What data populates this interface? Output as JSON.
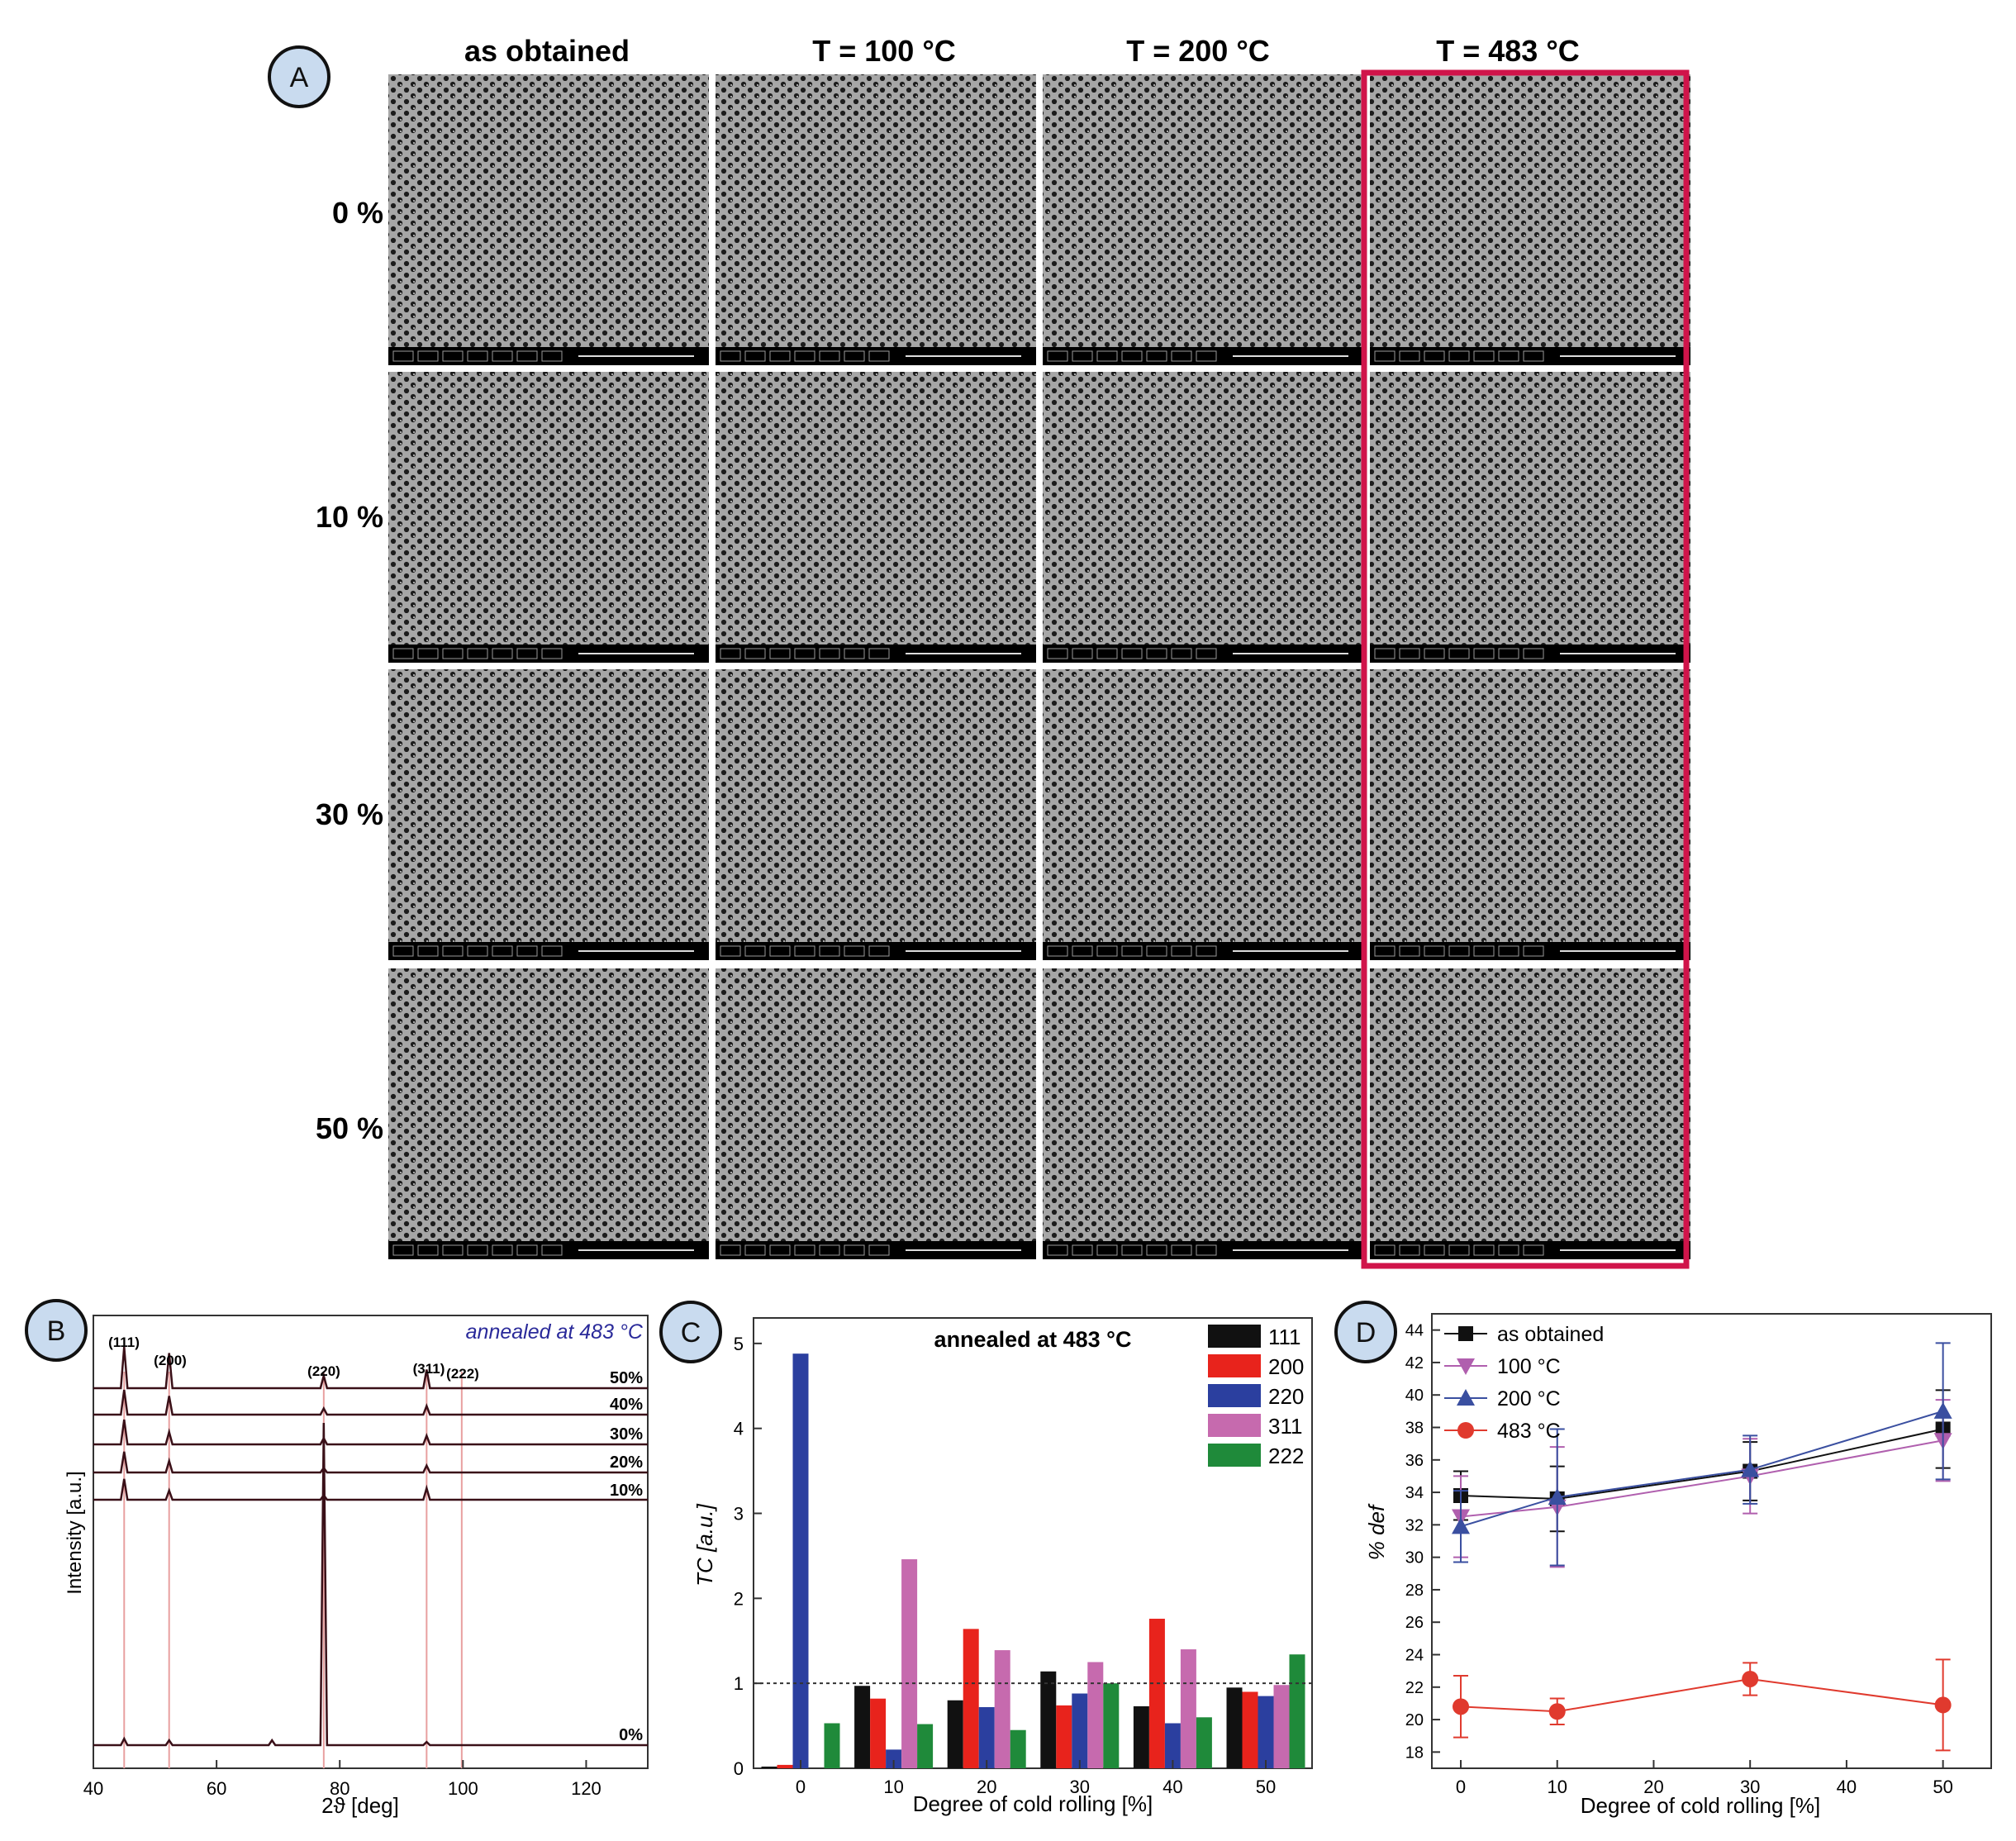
{
  "panel_a": {
    "badge": "A",
    "col_headers": [
      "as obtained",
      "T = 100 °C",
      "T = 200 °C",
      "T = 483 °C"
    ],
    "row_headers": [
      "0 %",
      "10 %",
      "30 %",
      "50 %"
    ],
    "highlight_color": "#d0144a",
    "highlighted_column": "T = 483 °C"
  },
  "chart_data": [
    {
      "panel": "B",
      "type": "line",
      "badge": "B",
      "annotation": "annealed at 483 °C",
      "xlabel": "2ϑ [deg]",
      "ylabel": "Intensity [a.u.]",
      "xlim": [
        40,
        130
      ],
      "x_ticks": [
        "40",
        "60",
        "80",
        "100",
        "120"
      ],
      "peak_labels": [
        {
          "label": "(111)",
          "x": 45
        },
        {
          "label": "(200)",
          "x": 52.3
        },
        {
          "label": "(220)",
          "x": 77.4
        },
        {
          "label": "(311)",
          "x": 94.1
        },
        {
          "label": "(222)",
          "x": 99.8
        }
      ],
      "series": [
        {
          "name": "50%",
          "peaks": [
            {
              "x": 45,
              "h": 1.0
            },
            {
              "x": 52.3,
              "h": 0.85
            },
            {
              "x": 77.4,
              "h": 0.3
            },
            {
              "x": 94.1,
              "h": 0.45
            }
          ]
        },
        {
          "name": "40%",
          "peaks": [
            {
              "x": 45,
              "h": 1.0
            },
            {
              "x": 52.3,
              "h": 0.75
            },
            {
              "x": 77.4,
              "h": 0.25
            },
            {
              "x": 94.1,
              "h": 0.35
            }
          ]
        },
        {
          "name": "30%",
          "peaks": [
            {
              "x": 45,
              "h": 1.0
            },
            {
              "x": 52.3,
              "h": 0.5
            },
            {
              "x": 77.4,
              "h": 0.25
            },
            {
              "x": 94.1,
              "h": 0.35
            }
          ]
        },
        {
          "name": "20%",
          "peaks": [
            {
              "x": 45,
              "h": 0.9
            },
            {
              "x": 52.3,
              "h": 0.5
            },
            {
              "x": 77.4,
              "h": 0.2
            },
            {
              "x": 94.1,
              "h": 0.3
            }
          ]
        },
        {
          "name": "10%",
          "peaks": [
            {
              "x": 45,
              "h": 0.9
            },
            {
              "x": 52.3,
              "h": 0.4
            },
            {
              "x": 77.4,
              "h": 0.2
            },
            {
              "x": 94.1,
              "h": 0.5
            }
          ]
        },
        {
          "name": "0%",
          "peaks": [
            {
              "x": 45,
              "h": 0.02
            },
            {
              "x": 52.3,
              "h": 0.015
            },
            {
              "x": 69,
              "h": 0.015
            },
            {
              "x": 77.4,
              "h": 1.0
            },
            {
              "x": 94.1,
              "h": 0.01
            }
          ]
        }
      ],
      "reference_lines_color": "#e8a0a0",
      "trace_color": "#3a1018",
      "annotation_color": "#2a2a9a"
    },
    {
      "panel": "C",
      "type": "bar",
      "badge": "C",
      "title": "annealed at 483 °C",
      "xlabel": "Degree of cold rolling [%]",
      "ylabel": "TC [a.u.]",
      "ylim": [
        0,
        5.3
      ],
      "y_ticks": [
        "0",
        "1",
        "2",
        "3",
        "4",
        "5"
      ],
      "reference_line": 1,
      "categories": [
        "0",
        "10",
        "20",
        "30",
        "40",
        "50"
      ],
      "series": [
        {
          "name": "111",
          "color": "#111111",
          "values": [
            0.02,
            0.97,
            0.8,
            1.14,
            0.73,
            0.95
          ]
        },
        {
          "name": "200",
          "color": "#e8231c",
          "values": [
            0.04,
            0.82,
            1.64,
            0.74,
            1.76,
            0.9
          ]
        },
        {
          "name": "220",
          "color": "#2b3f9f",
          "values": [
            4.88,
            0.22,
            0.72,
            0.88,
            0.53,
            0.85
          ]
        },
        {
          "name": "311",
          "color": "#c66aae",
          "values": [
            0.0,
            2.46,
            1.39,
            1.25,
            1.4,
            0.98
          ]
        },
        {
          "name": "222",
          "color": "#1f8a3a",
          "values": [
            0.53,
            0.52,
            0.45,
            1.0,
            0.6,
            1.34
          ]
        }
      ],
      "legend_position": "top-right"
    },
    {
      "panel": "D",
      "type": "line",
      "badge": "D",
      "xlabel": "Degree of cold rolling [%]",
      "ylabel": "% def",
      "xlim": [
        -3,
        55
      ],
      "ylim": [
        17,
        45
      ],
      "x_ticks": [
        0,
        10,
        20,
        30,
        40,
        50
      ],
      "y_ticks": [
        18,
        20,
        22,
        24,
        26,
        28,
        30,
        32,
        34,
        36,
        38,
        40,
        42,
        44
      ],
      "x": [
        0,
        10,
        30,
        50
      ],
      "series": [
        {
          "name": "as obtained",
          "color": "#111111",
          "marker": "square",
          "values": [
            33.8,
            33.6,
            35.3,
            37.9
          ],
          "err": [
            1.5,
            2.0,
            1.8,
            2.4
          ]
        },
        {
          "name": "100 °C",
          "color": "#b05fae",
          "marker": "triangle-down",
          "values": [
            32.5,
            33.1,
            35.0,
            37.2
          ],
          "err": [
            2.5,
            3.7,
            2.3,
            2.5
          ]
        },
        {
          "name": "200 °C",
          "color": "#3a4fa0",
          "marker": "triangle-up",
          "values": [
            31.9,
            33.7,
            35.4,
            39.0
          ],
          "err": [
            2.2,
            4.2,
            2.1,
            4.2
          ]
        },
        {
          "name": "483 °C",
          "color": "#e03a2e",
          "marker": "circle",
          "values": [
            20.8,
            20.5,
            22.5,
            20.9
          ],
          "err": [
            1.9,
            0.8,
            1.0,
            2.8
          ]
        }
      ],
      "legend_position": "top-left"
    }
  ]
}
